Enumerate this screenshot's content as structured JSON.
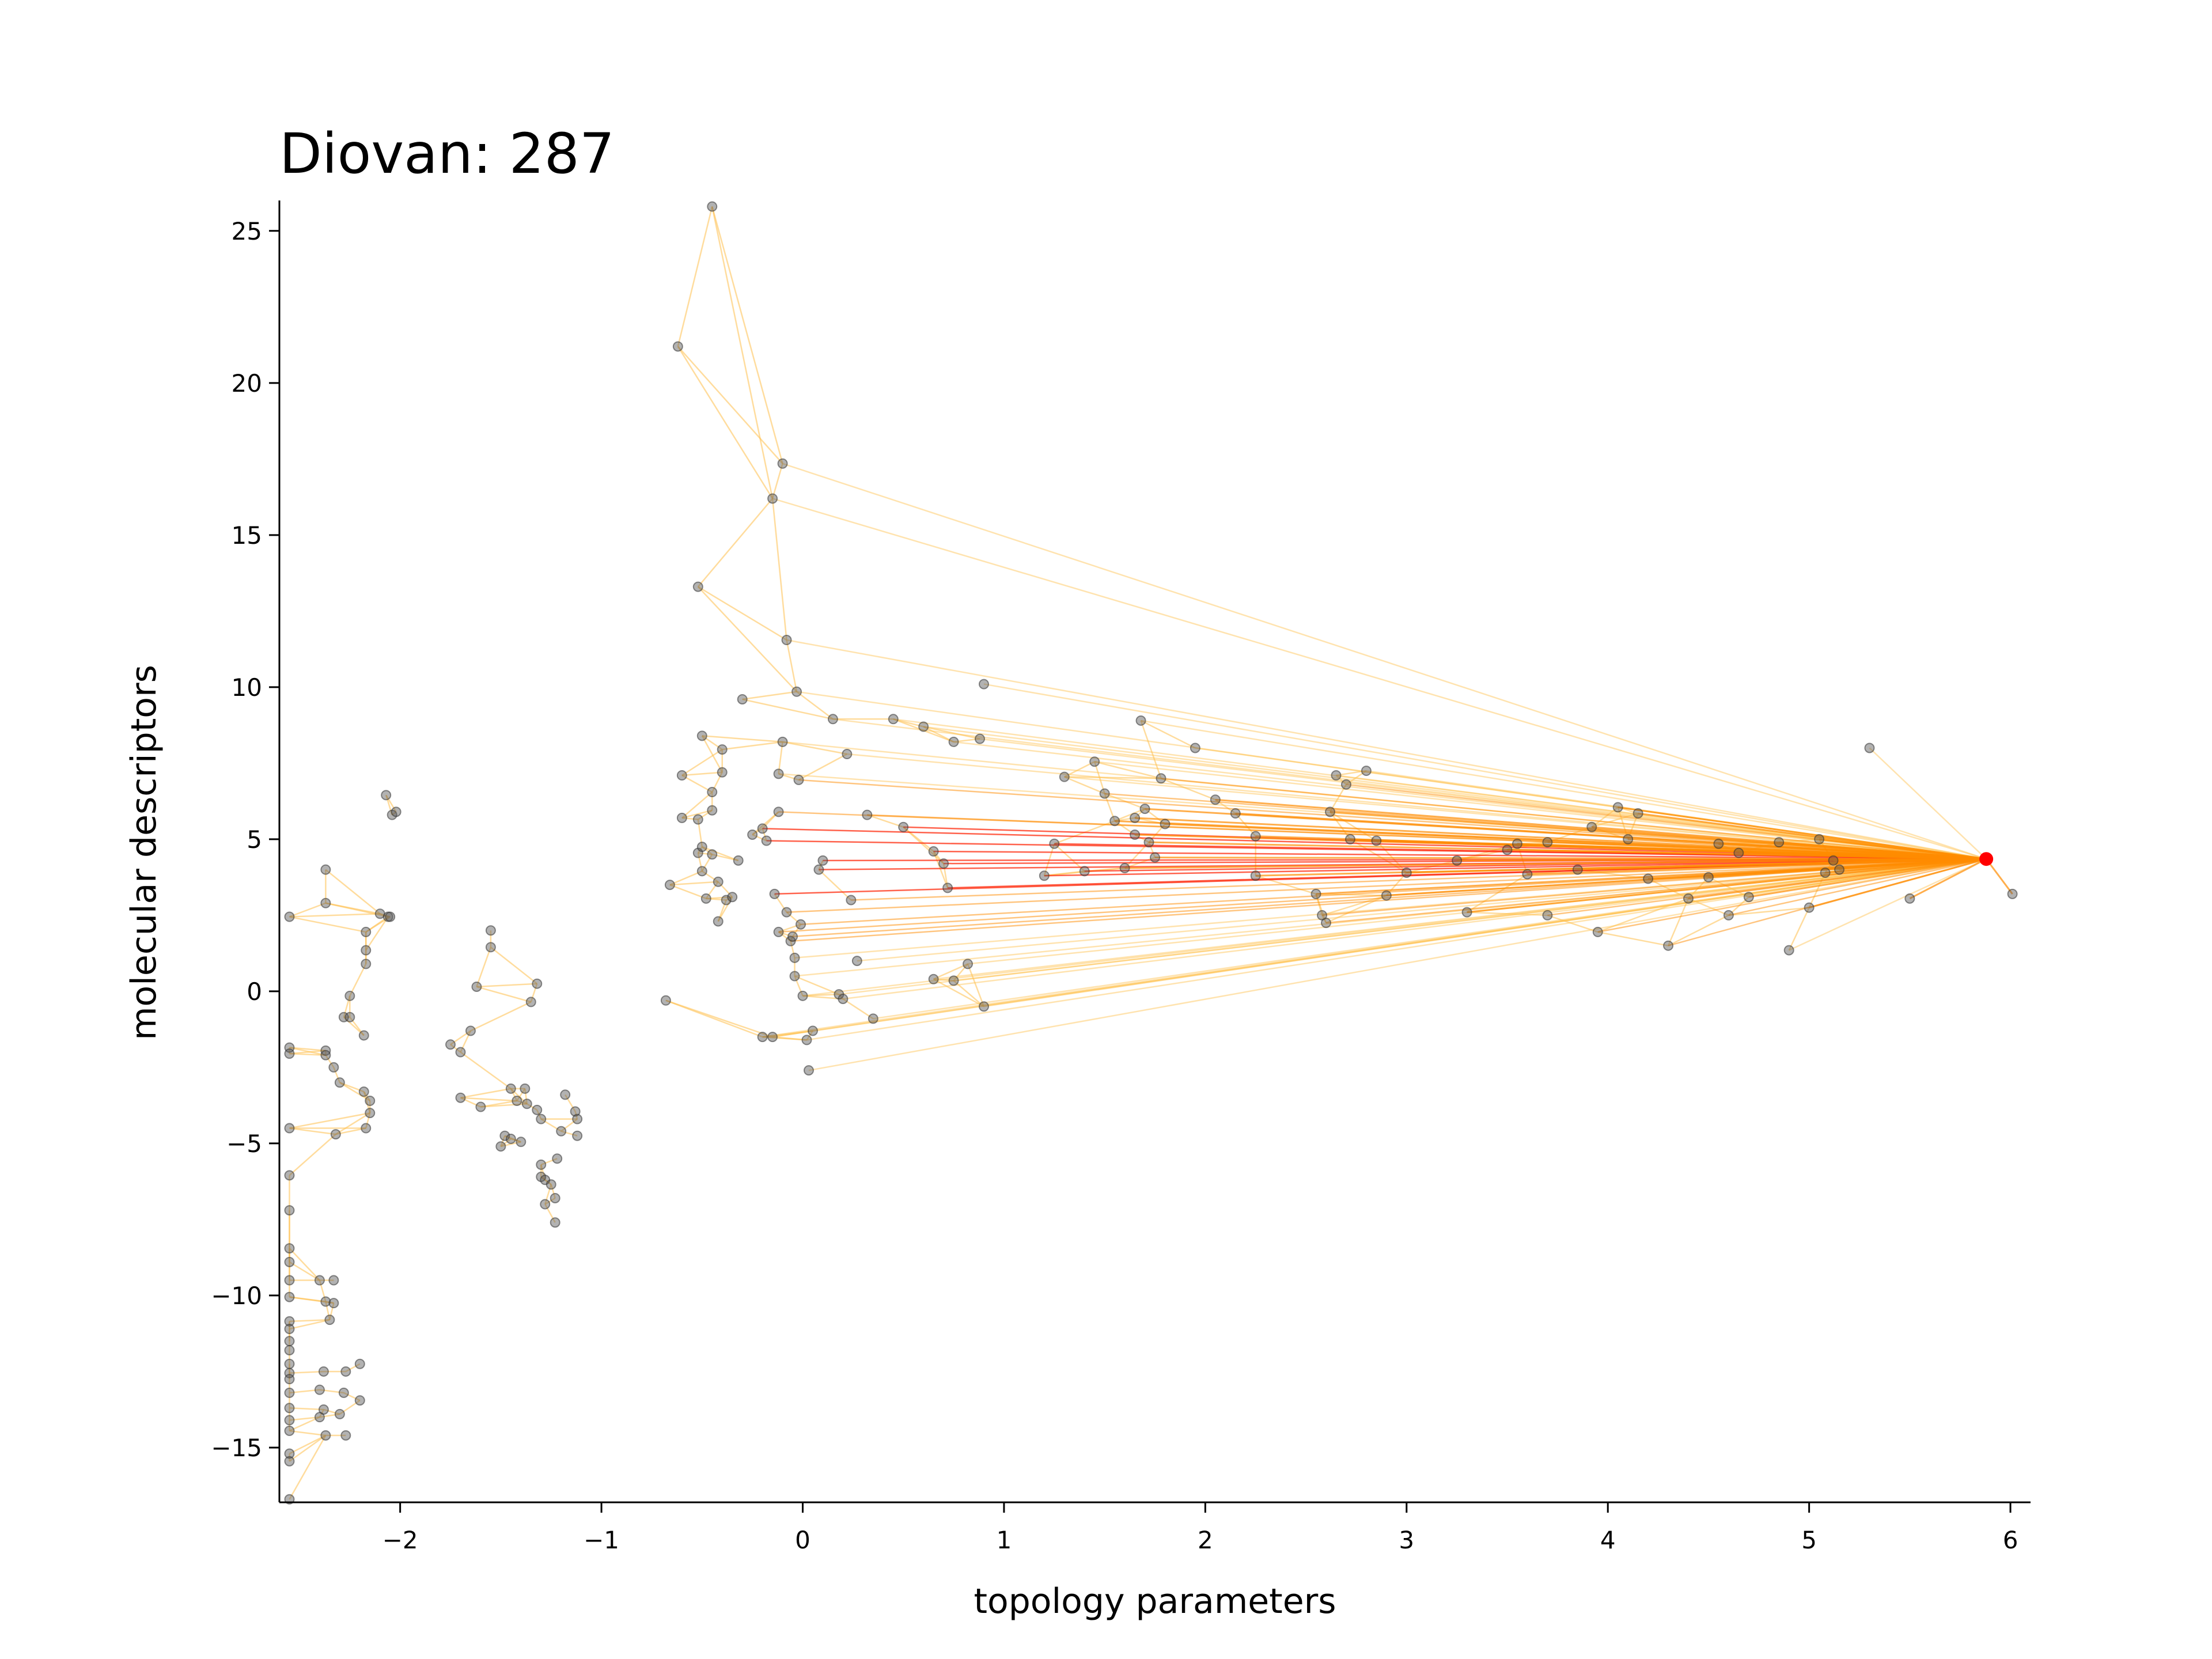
{
  "chart_data": {
    "type": "scatter",
    "title": "Diovan: 287",
    "xlabel": "topology parameters",
    "ylabel": "molecular descriptors",
    "xlim": [
      -2.6,
      6.1
    ],
    "ylim": [
      -16.8,
      26
    ],
    "xticks": [
      -2,
      -1,
      0,
      1,
      2,
      3,
      4,
      5,
      6
    ],
    "xtick_labels": [
      "−2",
      "−1",
      "0",
      "1",
      "2",
      "3",
      "4",
      "5",
      "6"
    ],
    "yticks": [
      -15,
      -10,
      -5,
      0,
      5,
      10,
      15,
      20,
      25
    ],
    "ytick_labels": [
      "−15",
      "−10",
      "−5",
      "0",
      "5",
      "10",
      "15",
      "20",
      "25"
    ],
    "grid": false,
    "highlight_point": {
      "x": 5.88,
      "y": 4.35,
      "color": "#ff0000"
    },
    "point_color": "#555555",
    "edge_colors": [
      "#ff2000",
      "#ff8c00",
      "#ffc04d"
    ],
    "points": [
      [
        -2.55,
        2.45
      ],
      [
        -2.55,
        -1.85
      ],
      [
        -2.55,
        -2.05
      ],
      [
        -2.55,
        -4.5
      ],
      [
        -2.55,
        -6.05
      ],
      [
        -2.55,
        -7.2
      ],
      [
        -2.55,
        -8.45
      ],
      [
        -2.55,
        -8.9
      ],
      [
        -2.55,
        -9.5
      ],
      [
        -2.55,
        -10.05
      ],
      [
        -2.55,
        -10.85
      ],
      [
        -2.55,
        -11.1
      ],
      [
        -2.55,
        -11.5
      ],
      [
        -2.55,
        -11.8
      ],
      [
        -2.55,
        -12.25
      ],
      [
        -2.55,
        -12.55
      ],
      [
        -2.55,
        -12.75
      ],
      [
        -2.55,
        -13.2
      ],
      [
        -2.55,
        -13.7
      ],
      [
        -2.55,
        -14.1
      ],
      [
        -2.55,
        -14.45
      ],
      [
        -2.55,
        -15.2
      ],
      [
        -2.55,
        -15.45
      ],
      [
        -2.55,
        -16.7
      ],
      [
        -2.4,
        -9.5
      ],
      [
        -2.37,
        -10.2
      ],
      [
        -2.33,
        -10.25
      ],
      [
        -2.33,
        -9.5
      ],
      [
        -2.35,
        -10.8
      ],
      [
        -2.38,
        -12.5
      ],
      [
        -2.4,
        -13.1
      ],
      [
        -2.38,
        -13.75
      ],
      [
        -2.4,
        -14.0
      ],
      [
        -2.37,
        -14.6
      ],
      [
        -2.3,
        -13.9
      ],
      [
        -2.28,
        -13.2
      ],
      [
        -2.27,
        -12.5
      ],
      [
        -2.27,
        -14.6
      ],
      [
        -2.2,
        -12.25
      ],
      [
        -2.2,
        -13.45
      ],
      [
        -2.37,
        4.0
      ],
      [
        -2.37,
        2.9
      ],
      [
        -2.37,
        -1.95
      ],
      [
        -2.37,
        -2.1
      ],
      [
        -2.33,
        -2.5
      ],
      [
        -2.3,
        -3.0
      ],
      [
        -2.32,
        -4.7
      ],
      [
        -2.28,
        -0.85
      ],
      [
        -2.25,
        -0.85
      ],
      [
        -2.25,
        -0.15
      ],
      [
        -2.18,
        -1.45
      ],
      [
        -2.18,
        -3.3
      ],
      [
        -2.15,
        -3.6
      ],
      [
        -2.15,
        -4.0
      ],
      [
        -2.17,
        -4.5
      ],
      [
        -2.17,
        0.9
      ],
      [
        -2.17,
        1.35
      ],
      [
        -2.17,
        1.95
      ],
      [
        -2.1,
        2.55
      ],
      [
        -2.06,
        2.45
      ],
      [
        -2.05,
        2.45
      ],
      [
        -2.07,
        6.45
      ],
      [
        -2.04,
        5.8
      ],
      [
        -2.02,
        5.9
      ],
      [
        -1.75,
        -1.75
      ],
      [
        -1.7,
        -2.0
      ],
      [
        -1.7,
        -3.5
      ],
      [
        -1.65,
        -1.3
      ],
      [
        -1.62,
        0.15
      ],
      [
        -1.6,
        -3.8
      ],
      [
        -1.55,
        2.0
      ],
      [
        -1.55,
        1.45
      ],
      [
        -1.5,
        -5.1
      ],
      [
        -1.48,
        -4.75
      ],
      [
        -1.45,
        -4.85
      ],
      [
        -1.45,
        -3.2
      ],
      [
        -1.42,
        -3.6
      ],
      [
        -1.4,
        -4.95
      ],
      [
        -1.38,
        -3.2
      ],
      [
        -1.37,
        -3.7
      ],
      [
        -1.35,
        -0.35
      ],
      [
        -1.32,
        0.25
      ],
      [
        -1.32,
        -3.9
      ],
      [
        -1.3,
        -4.2
      ],
      [
        -1.3,
        -5.7
      ],
      [
        -1.3,
        -6.1
      ],
      [
        -1.28,
        -6.2
      ],
      [
        -1.28,
        -7.0
      ],
      [
        -1.25,
        -6.35
      ],
      [
        -1.23,
        -6.8
      ],
      [
        -1.23,
        -7.6
      ],
      [
        -1.22,
        -5.5
      ],
      [
        -1.2,
        -4.6
      ],
      [
        -1.18,
        -3.4
      ],
      [
        -1.13,
        -3.95
      ],
      [
        -1.12,
        -4.2
      ],
      [
        -1.12,
        -4.75
      ],
      [
        -0.68,
        -0.3
      ],
      [
        -0.66,
        3.5
      ],
      [
        -0.62,
        21.2
      ],
      [
        -0.6,
        5.7
      ],
      [
        -0.6,
        7.1
      ],
      [
        -0.52,
        13.3
      ],
      [
        -0.52,
        5.65
      ],
      [
        -0.52,
        4.55
      ],
      [
        -0.5,
        8.4
      ],
      [
        -0.5,
        4.75
      ],
      [
        -0.5,
        3.95
      ],
      [
        -0.48,
        3.05
      ],
      [
        -0.45,
        25.8
      ],
      [
        -0.45,
        5.95
      ],
      [
        -0.45,
        6.55
      ],
      [
        -0.45,
        4.5
      ],
      [
        -0.42,
        3.6
      ],
      [
        -0.42,
        2.3
      ],
      [
        -0.4,
        7.95
      ],
      [
        -0.4,
        7.2
      ],
      [
        -0.38,
        3.0
      ],
      [
        -0.35,
        3.1
      ],
      [
        -0.32,
        4.3
      ],
      [
        -0.3,
        9.6
      ],
      [
        -0.25,
        5.15
      ],
      [
        -0.2,
        5.35
      ],
      [
        -0.2,
        -1.5
      ],
      [
        -0.18,
        4.95
      ],
      [
        -0.15,
        16.2
      ],
      [
        -0.15,
        -1.5
      ],
      [
        -0.14,
        3.2
      ],
      [
        -0.12,
        7.15
      ],
      [
        -0.12,
        5.9
      ],
      [
        -0.12,
        1.95
      ],
      [
        -0.1,
        17.35
      ],
      [
        -0.1,
        8.2
      ],
      [
        -0.08,
        11.55
      ],
      [
        -0.08,
        2.6
      ],
      [
        -0.06,
        1.65
      ],
      [
        -0.05,
        1.8
      ],
      [
        -0.04,
        1.1
      ],
      [
        -0.04,
        0.5
      ],
      [
        -0.03,
        9.85
      ],
      [
        -0.02,
        6.95
      ],
      [
        -0.01,
        2.2
      ],
      [
        0.0,
        -0.15
      ],
      [
        0.02,
        -1.6
      ],
      [
        0.03,
        -2.6
      ],
      [
        0.05,
        -1.3
      ],
      [
        0.08,
        4.0
      ],
      [
        0.1,
        4.3
      ],
      [
        0.15,
        8.95
      ],
      [
        0.18,
        -0.1
      ],
      [
        0.2,
        -0.25
      ],
      [
        0.22,
        7.8
      ],
      [
        0.24,
        3.0
      ],
      [
        0.27,
        1.0
      ],
      [
        0.32,
        5.8
      ],
      [
        0.35,
        -0.9
      ],
      [
        0.45,
        8.95
      ],
      [
        0.5,
        5.4
      ],
      [
        0.6,
        8.7
      ],
      [
        0.65,
        4.6
      ],
      [
        0.65,
        0.4
      ],
      [
        0.7,
        4.2
      ],
      [
        0.72,
        3.4
      ],
      [
        0.75,
        0.35
      ],
      [
        0.75,
        8.2
      ],
      [
        0.82,
        0.9
      ],
      [
        0.88,
        8.3
      ],
      [
        0.9,
        10.1
      ],
      [
        0.9,
        -0.5
      ],
      [
        1.2,
        3.8
      ],
      [
        1.25,
        4.85
      ],
      [
        1.3,
        7.05
      ],
      [
        1.4,
        3.95
      ],
      [
        1.45,
        7.55
      ],
      [
        1.5,
        6.5
      ],
      [
        1.55,
        5.6
      ],
      [
        1.6,
        4.05
      ],
      [
        1.65,
        5.7
      ],
      [
        1.65,
        5.15
      ],
      [
        1.68,
        8.9
      ],
      [
        1.7,
        6.0
      ],
      [
        1.72,
        4.9
      ],
      [
        1.75,
        4.4
      ],
      [
        1.78,
        7.0
      ],
      [
        1.8,
        5.5
      ],
      [
        1.95,
        8.0
      ],
      [
        2.05,
        6.3
      ],
      [
        2.15,
        5.85
      ],
      [
        2.25,
        5.1
      ],
      [
        2.25,
        3.8
      ],
      [
        2.55,
        3.2
      ],
      [
        2.58,
        2.5
      ],
      [
        2.6,
        2.25
      ],
      [
        2.62,
        5.9
      ],
      [
        2.65,
        7.1
      ],
      [
        2.7,
        6.8
      ],
      [
        2.72,
        5.0
      ],
      [
        2.8,
        7.25
      ],
      [
        2.85,
        4.95
      ],
      [
        2.9,
        3.15
      ],
      [
        3.0,
        3.9
      ],
      [
        3.25,
        4.3
      ],
      [
        3.3,
        2.6
      ],
      [
        3.5,
        4.65
      ],
      [
        3.55,
        4.85
      ],
      [
        3.6,
        3.85
      ],
      [
        3.7,
        4.9
      ],
      [
        3.7,
        2.5
      ],
      [
        3.85,
        4.0
      ],
      [
        3.92,
        5.4
      ],
      [
        3.95,
        1.95
      ],
      [
        4.05,
        6.05
      ],
      [
        4.1,
        5.0
      ],
      [
        4.15,
        5.85
      ],
      [
        4.2,
        3.7
      ],
      [
        4.3,
        1.5
      ],
      [
        4.4,
        3.05
      ],
      [
        4.5,
        3.75
      ],
      [
        4.55,
        4.85
      ],
      [
        4.6,
        2.5
      ],
      [
        4.65,
        4.55
      ],
      [
        4.7,
        3.1
      ],
      [
        4.85,
        4.9
      ],
      [
        4.9,
        1.35
      ],
      [
        5.0,
        2.75
      ],
      [
        5.05,
        5.0
      ],
      [
        5.08,
        3.9
      ],
      [
        5.12,
        4.3
      ],
      [
        5.15,
        4.0
      ],
      [
        5.3,
        8.0
      ],
      [
        5.5,
        3.05
      ],
      [
        6.01,
        3.2
      ]
    ]
  }
}
